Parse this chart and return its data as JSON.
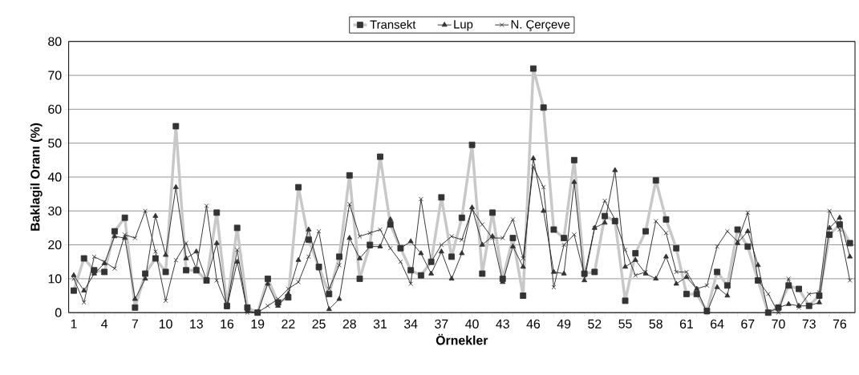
{
  "chart_data": {
    "type": "line",
    "xlabel": "Örnekler",
    "ylabel": "Baklagil Oranı (%)",
    "categories": [
      "1",
      null,
      null,
      "4",
      null,
      null,
      "7",
      null,
      null,
      "10",
      null,
      null,
      "13",
      null,
      null,
      "16",
      null,
      null,
      "19",
      null,
      null,
      "22",
      null,
      null,
      "25",
      null,
      null,
      "28",
      null,
      null,
      "31",
      null,
      null,
      "34",
      null,
      null,
      "37",
      null,
      null,
      "40",
      null,
      null,
      "43",
      null,
      null,
      "46",
      null,
      null,
      "49",
      null,
      null,
      "52",
      null,
      null,
      "55",
      null,
      null,
      "58",
      null,
      null,
      "61",
      null,
      null,
      "64",
      null,
      null,
      "67",
      null,
      null,
      "70",
      null,
      null,
      "73",
      null,
      null,
      "76",
      null
    ],
    "ylim": [
      0,
      80
    ],
    "yticks": [
      0,
      10,
      20,
      30,
      40,
      50,
      60,
      70,
      80
    ],
    "grid": "y",
    "legend": "top",
    "line_style": "solid",
    "series": [
      {
        "name": "Transekt",
        "color": "#c8c8c8",
        "marker": "square",
        "values": [
          6.5,
          16,
          12.5,
          12,
          24,
          28,
          1.5,
          11.5,
          16,
          12,
          55,
          12.5,
          12.5,
          9.5,
          29.5,
          2,
          25,
          1.5,
          0,
          10,
          3,
          4.5,
          37,
          21.5,
          13.5,
          5.5,
          16.5,
          40.5,
          10,
          20,
          46,
          26,
          19,
          12.5,
          11,
          15,
          34,
          16.5,
          28,
          49.5,
          11.5,
          29.5,
          10,
          22,
          5,
          72,
          60.5,
          24.5,
          22,
          45,
          11.5,
          12,
          28.5,
          27,
          3.5,
          17.5,
          24,
          39,
          27.5,
          19,
          5.5,
          5.5,
          0.5,
          12,
          8,
          24.5,
          19.5,
          9.5,
          0,
          1.5,
          8,
          7,
          2,
          5,
          23,
          26,
          20.5
        ]
      },
      {
        "name": "Lup",
        "color": "#222222",
        "marker": "triangle",
        "values": [
          11,
          6.5,
          11.5,
          14.5,
          22.5,
          22,
          4,
          10,
          28.5,
          17,
          37,
          16,
          18,
          9.5,
          20.5,
          1.5,
          15,
          0.5,
          0,
          8.5,
          2,
          5.5,
          15.5,
          24.5,
          13,
          1,
          4,
          22,
          16,
          19.5,
          19.5,
          27.5,
          19,
          21,
          17.5,
          11.5,
          18,
          10,
          17.5,
          31,
          20,
          22.5,
          9,
          19.5,
          13.5,
          45.5,
          30,
          12,
          11.5,
          38.5,
          9.5,
          25,
          26.5,
          42,
          13.5,
          15.5,
          11.5,
          10,
          16.5,
          8.5,
          10.5,
          7,
          0,
          7.5,
          5,
          20.5,
          24,
          14,
          0,
          1.5,
          2.5,
          2,
          2,
          3,
          25,
          28,
          16.5
        ]
      },
      {
        "name": "N. Çerçeve",
        "color": "#222222",
        "marker": "cross",
        "values": [
          10,
          3,
          16.5,
          15,
          13,
          23,
          22,
          30,
          18,
          3.5,
          15.5,
          20.5,
          13,
          31.5,
          9.5,
          2,
          18.5,
          0,
          0,
          2,
          4,
          7,
          9,
          16.5,
          24,
          7,
          14,
          32,
          22.5,
          23.5,
          24.5,
          19,
          15,
          8.5,
          33.5,
          15,
          20,
          22.5,
          21.5,
          30.5,
          26,
          22,
          22,
          27.5,
          16,
          43,
          37,
          7.5,
          20,
          23,
          11,
          25,
          33,
          27.5,
          18.5,
          11,
          12,
          27,
          23.5,
          12,
          12,
          7,
          8,
          19.5,
          24,
          21,
          29.5,
          9.5,
          5.5,
          0,
          10,
          1.5,
          5.5,
          6,
          30,
          24.5,
          9.5
        ]
      }
    ]
  }
}
